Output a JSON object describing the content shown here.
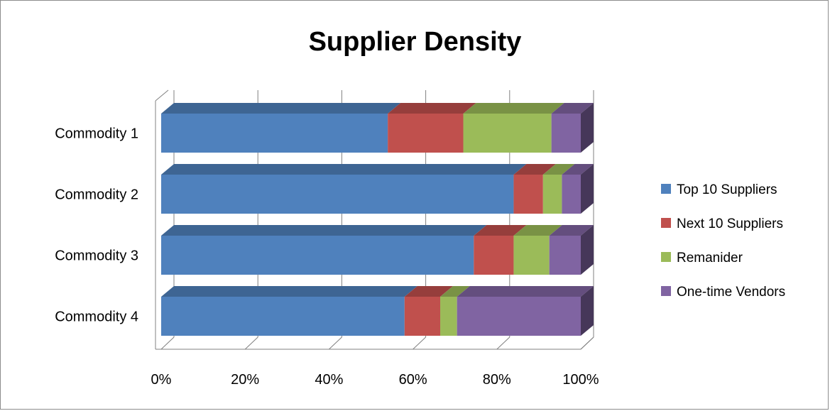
{
  "chart_data": {
    "type": "bar",
    "orientation": "horizontal",
    "stacked": "percent",
    "three_d": true,
    "title": "Supplier Density",
    "categories": [
      "Commodity 1",
      "Commodity 2",
      "Commodity 3",
      "Commodity 4"
    ],
    "series": [
      {
        "name": "Top 10 Suppliers",
        "color": "#4f81bd",
        "values": [
          54,
          84,
          74.5,
          58
        ]
      },
      {
        "name": "Next 10 Suppliers",
        "color": "#c0504d",
        "values": [
          18,
          7,
          9.5,
          8.5
        ]
      },
      {
        "name": "Remanider",
        "color": "#9bbb59",
        "values": [
          21,
          4.5,
          8.5,
          4
        ]
      },
      {
        "name": "One-time Vendors",
        "color": "#8064a2",
        "values": [
          7,
          4.5,
          7.5,
          29.5
        ]
      }
    ],
    "x_ticks": [
      "0%",
      "20%",
      "40%",
      "60%",
      "80%",
      "100%"
    ],
    "xlim": [
      0,
      100
    ],
    "grid": true,
    "legend_position": "right"
  }
}
